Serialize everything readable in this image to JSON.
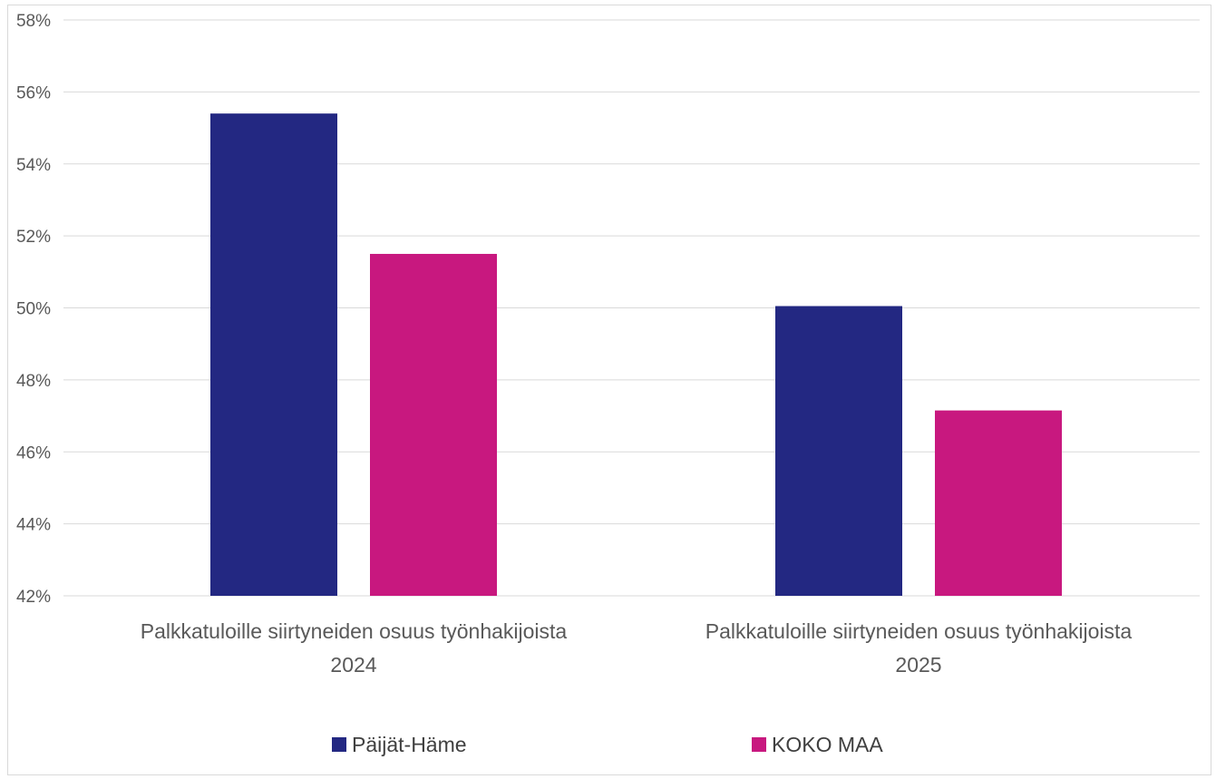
{
  "chart_data": {
    "type": "bar",
    "categories": [
      "Palkkatuloille siirtyneiden osuus työnhakijoista 2024",
      "Palkkatuloille siirtyneiden osuus työnhakijoista 2025"
    ],
    "category_lines": [
      [
        "Palkkatuloille siirtyneiden osuus työnhakijoista",
        "2024"
      ],
      [
        "Palkkatuloille siirtyneiden osuus työnhakijoista",
        "2025"
      ]
    ],
    "series": [
      {
        "name": "Päijät-Häme",
        "color": "#232882",
        "values": [
          55.4,
          50.05
        ]
      },
      {
        "name": "KOKO MAA",
        "color": "#C8187F",
        "values": [
          51.5,
          47.15
        ]
      }
    ],
    "yticks": [
      "42%",
      "44%",
      "46%",
      "48%",
      "50%",
      "52%",
      "54%",
      "56%",
      "58%"
    ],
    "ylim": [
      42,
      58
    ],
    "grid": true,
    "legend_position": "bottom",
    "title": "",
    "xlabel": "",
    "ylabel": ""
  }
}
